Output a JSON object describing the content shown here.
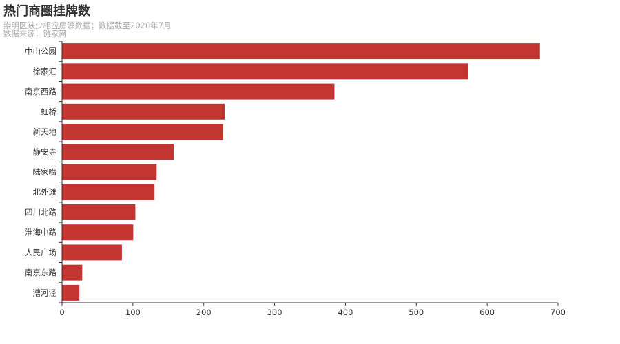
{
  "chart_data": {
    "type": "bar",
    "orientation": "horizontal",
    "title": "热门商圈挂牌数",
    "subtitle": [
      "崇明区缺少相应房源数据；数据截至2020年7月",
      "数据来源：链家网"
    ],
    "categories": [
      "中山公园",
      "徐家汇",
      "南京西路",
      "虹桥",
      "新天地",
      "静安寺",
      "陆家嘴",
      "北外滩",
      "四川北路",
      "淮海中路",
      "人民广场",
      "南京东路",
      "漕河泾"
    ],
    "values": [
      674,
      573,
      384,
      229,
      227,
      157,
      133,
      130,
      103,
      100,
      84,
      28,
      24
    ],
    "xlim": [
      0,
      700
    ],
    "xticks": [
      0,
      100,
      200,
      300,
      400,
      500,
      600,
      700
    ],
    "xlabel": "",
    "ylabel": "",
    "grid": false,
    "bar_color": "#c23531"
  }
}
